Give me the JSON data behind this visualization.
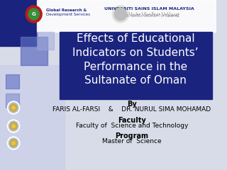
{
  "bg_color": "#d8dce8",
  "title_box_color": "#1a237e",
  "title_text": "Effects of Educational\nIndicators on Students’\nPerformance in the\nSultanate of Oman",
  "title_text_color": "#ffffff",
  "title_fontsize": 11,
  "by_label": "By",
  "authors": "FARIS AL-FARSI    &    DR. NURUL SIMA MOHAMAD",
  "faculty_label": "Faculty",
  "faculty_value": "Faculty of  Science and Technology",
  "program_label": "Program",
  "program_value": "Master of  Science",
  "label_fontsize": 7,
  "value_fontsize": 6.5,
  "authors_fontsize": 6.5,
  "accent_color": "#3949ab",
  "square_colors": [
    "#1a237e",
    "#5c6bc0",
    "#9fa8da"
  ],
  "bullet_color": "#c8a84b",
  "left_panel_color": "#c5cae9"
}
